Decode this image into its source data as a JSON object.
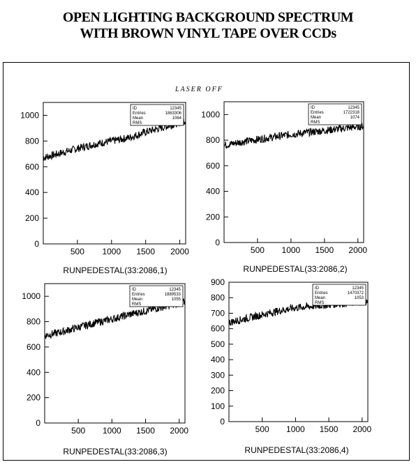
{
  "title_line1": "OPEN LIGHTING BACKGROUND SPECTRUM",
  "title_line2": "WITH BROWN VINYL TAPE OVER CCDs",
  "annotation": "LASER OFF",
  "chart_data": [
    {
      "type": "line",
      "xlabel": "RUNPEDESTAL(33:2086,1)",
      "xlim": [
        0,
        2086
      ],
      "ylim": [
        0,
        1100
      ],
      "xticks": [
        500,
        1000,
        1500,
        2000
      ],
      "yticks": [
        0,
        200,
        400,
        600,
        800,
        1000
      ],
      "stats": {
        "ID": "12345",
        "Entries": "1863306",
        "Mean": "1064",
        "RMS": ""
      },
      "series": [
        {
          "x": [
            0,
            250,
            500,
            750,
            1000,
            1250,
            1500,
            1750,
            2000,
            2086
          ],
          "y": [
            670,
            705,
            742,
            775,
            800,
            825,
            870,
            905,
            945,
            960
          ]
        }
      ]
    },
    {
      "type": "line",
      "xlabel": "RUNPEDESTAL(33:2086,2)",
      "xlim": [
        0,
        2086
      ],
      "ylim": [
        0,
        1100
      ],
      "xticks": [
        500,
        1000,
        1500,
        2000
      ],
      "yticks": [
        0,
        200,
        400,
        600,
        800,
        1000
      ],
      "stats": {
        "ID": "12345",
        "Entries": "1722318",
        "Mean": "1074",
        "RMS": ""
      },
      "series": [
        {
          "x": [
            0,
            250,
            500,
            750,
            1000,
            1250,
            1500,
            1750,
            2000,
            2086
          ],
          "y": [
            760,
            785,
            805,
            825,
            845,
            860,
            875,
            890,
            905,
            910
          ]
        }
      ]
    },
    {
      "type": "line",
      "xlabel": "RUNPEDESTAL(33:2086,3)",
      "xlim": [
        0,
        2086
      ],
      "ylim": [
        0,
        1100
      ],
      "xticks": [
        500,
        1000,
        1500,
        2000
      ],
      "yticks": [
        0,
        200,
        400,
        600,
        800,
        1000
      ],
      "stats": {
        "ID": "12345",
        "Entries": "1889533",
        "Mean": "1055",
        "RMS": ""
      },
      "series": [
        {
          "x": [
            0,
            250,
            500,
            750,
            1000,
            1250,
            1500,
            1750,
            2000,
            2086
          ],
          "y": [
            690,
            718,
            755,
            790,
            820,
            855,
            885,
            915,
            945,
            955
          ]
        }
      ]
    },
    {
      "type": "line",
      "xlabel": "RUNPEDESTAL(33:2086,4)",
      "xlim": [
        0,
        2086
      ],
      "ylim": [
        0,
        900
      ],
      "xticks": [
        500,
        1000,
        1500,
        2000
      ],
      "yticks": [
        0,
        100,
        200,
        300,
        400,
        500,
        600,
        700,
        800,
        900
      ],
      "stats": {
        "ID": "12345",
        "Entries": "1470372",
        "Mean": "1053",
        "RMS": ""
      },
      "series": [
        {
          "x": [
            0,
            250,
            500,
            750,
            1000,
            1250,
            1500,
            1750,
            2000,
            2086
          ],
          "y": [
            640,
            665,
            690,
            715,
            735,
            745,
            755,
            765,
            775,
            775
          ]
        }
      ]
    }
  ]
}
